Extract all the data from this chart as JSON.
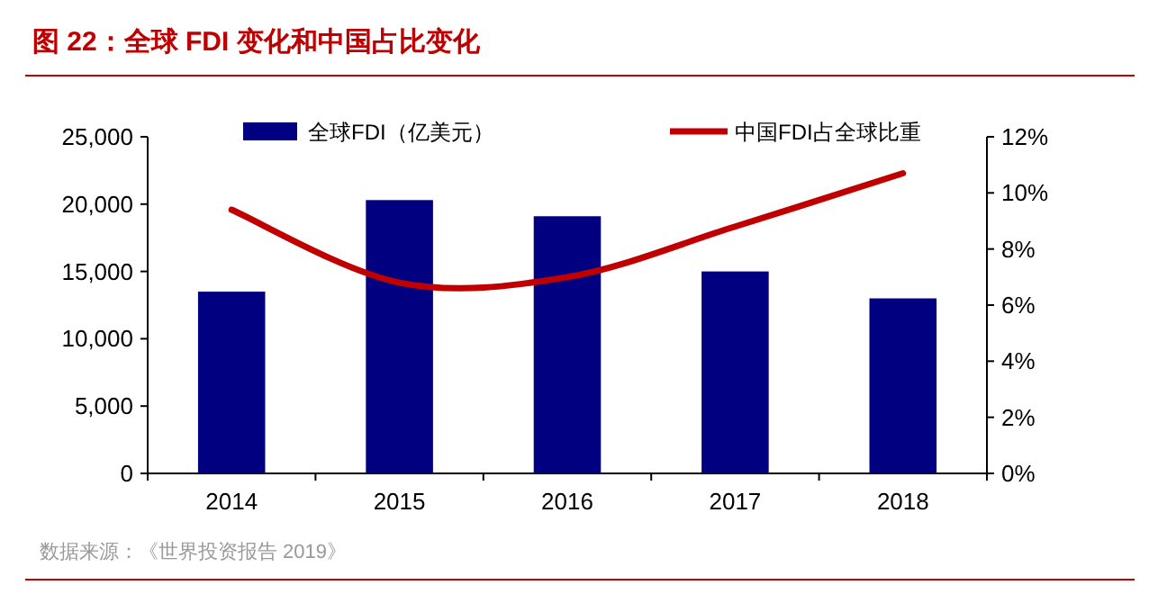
{
  "chart_data": {
    "type": "bar",
    "title": "图 22：全球 FDI 变化和中国占比变化",
    "categories": [
      "2014",
      "2015",
      "2016",
      "2017",
      "2018"
    ],
    "series": [
      {
        "name": "全球FDI（亿美元）",
        "color": "#000080",
        "values": [
          13500,
          20300,
          19100,
          15000,
          13000
        ]
      },
      {
        "name": "中国FDI占全球比重",
        "type": "line",
        "axis": "y2",
        "color": "#c00000",
        "values": [
          9.4,
          6.8,
          7.0,
          8.8,
          10.7
        ]
      }
    ],
    "ylim": [
      0,
      25000
    ],
    "yticks": [
      {
        "value": 0,
        "label": "0"
      },
      {
        "value": 5000,
        "label": "5,000"
      },
      {
        "value": 10000,
        "label": "10,000"
      },
      {
        "value": 15000,
        "label": "15,000"
      },
      {
        "value": 20000,
        "label": "20,000"
      },
      {
        "value": 25000,
        "label": "25,000"
      }
    ],
    "y2lim": [
      0,
      12
    ],
    "y2ticks": [
      {
        "value": 0,
        "label": "0%"
      },
      {
        "value": 2,
        "label": "2%"
      },
      {
        "value": 4,
        "label": "4%"
      },
      {
        "value": 6,
        "label": "6%"
      },
      {
        "value": 8,
        "label": "8%"
      },
      {
        "value": 10,
        "label": "10%"
      },
      {
        "value": 12,
        "label": "12%"
      }
    ],
    "legend": "top",
    "grid": false,
    "annotations": [
      "数据来源：《世界投资报告 2019》"
    ]
  }
}
